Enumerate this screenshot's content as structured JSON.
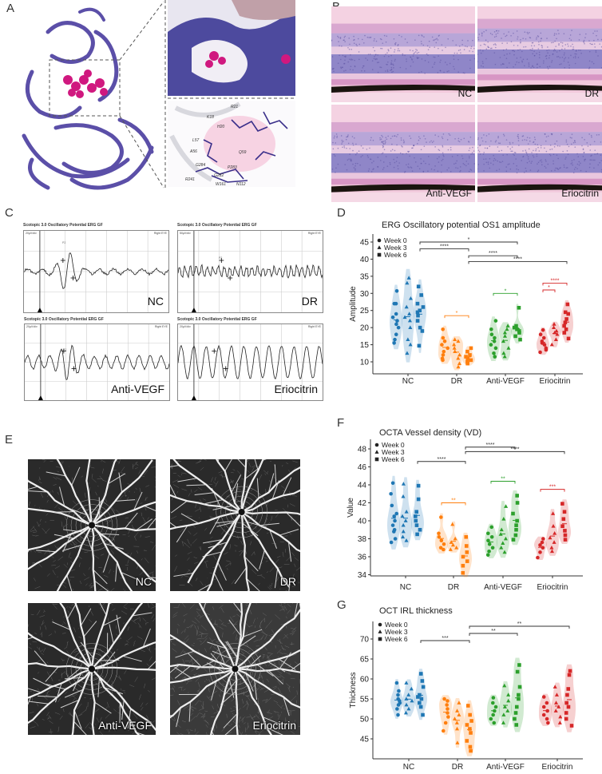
{
  "panel_letters": {
    "a": "A",
    "b": "B",
    "c": "C",
    "d": "D",
    "e": "E",
    "f": "F",
    "g": "G"
  },
  "panel_a": {
    "residues": [
      "K18",
      "R21",
      "H20",
      "L57",
      "A56",
      "Q59",
      "G284",
      "P283",
      "G282",
      "R241",
      "W161",
      "N112"
    ]
  },
  "panel_b": {
    "labels": [
      "NC",
      "DR",
      "Anti-VEGF",
      "Eriocitrin"
    ]
  },
  "panel_c": {
    "header": "Scotopic 3.0 Oscillatory Potential ERG GF",
    "scale_labels": [
      "20µV/div",
      "50µV/div",
      "20µV/div",
      "20µV/div"
    ],
    "eye_label": "Right EYE",
    "peak_label": "P2",
    "labels": [
      "NC",
      "DR",
      "Anti-VEGF",
      "Eriocitrin"
    ]
  },
  "panel_e": {
    "labels": [
      "NC",
      "DR",
      "Anti-VEGF",
      "Eriocitrin"
    ]
  },
  "colors": {
    "NC": "#1f77b4",
    "DR": "#ff7f0e",
    "Anti-VEGF": "#2ca02c",
    "Eriocitrin": "#d62728",
    "bracket": "#333333"
  },
  "chart_data": [
    {
      "type": "violin",
      "title": "ERG Oscillatory potential OS1 amplitude",
      "ylabel": "Amplitude",
      "xlabel": "",
      "categories": [
        "NC",
        "DR",
        "Anti-VEGF",
        "Eriocitrin"
      ],
      "legend": [
        "Week 0",
        "Week 3",
        "Week 6"
      ],
      "legend_markers": [
        "circle",
        "triangle",
        "square"
      ],
      "legend_position": "top-left",
      "y_ticks": [
        10,
        15,
        20,
        25,
        30,
        35,
        40,
        45
      ],
      "ylim": [
        6.5,
        47
      ],
      "series": [
        {
          "name": "Week 0",
          "values": [
            [
              15.5,
              16.5,
              18,
              20,
              21,
              22,
              23,
              24,
              27,
              27,
              30.7
            ],
            [
              10.5,
              11,
              12,
              13,
              14,
              15,
              16,
              17,
              19.5
            ],
            [
              11.5,
              12.5,
              14,
              15,
              16,
              17,
              18,
              19.5,
              22
            ],
            [
              12.8,
              13.5,
              14,
              15,
              15.5,
              16,
              17,
              18,
              19.3
            ]
          ]
        },
        {
          "name": "Week 3",
          "values": [
            [
              12.5,
              15,
              16.5,
              20,
              22,
              23,
              24,
              26,
              28.5,
              33,
              34.5
            ],
            [
              8.5,
              9.5,
              11,
              12,
              13,
              14,
              15,
              16,
              16.5
            ],
            [
              11.5,
              12.5,
              14,
              16,
              17.5,
              18.5,
              19.5,
              20.5
            ],
            [
              15,
              16.5,
              18,
              18.5,
              19,
              20,
              21
            ]
          ]
        },
        {
          "name": "Week 6",
          "values": [
            [
              14.7,
              19,
              20,
              22,
              23.5,
              24.5,
              25,
              26,
              27,
              29.5,
              32
            ],
            [
              9.5,
              10,
              10.5,
              11,
              11.5,
              12,
              13,
              14
            ],
            [
              16.5,
              17.5,
              18.5,
              19,
              19.5,
              20,
              20.5,
              25.8
            ],
            [
              16.8,
              18.5,
              19.5,
              20.5,
              21.5,
              22.5,
              24,
              24.5,
              26.8
            ]
          ]
        }
      ],
      "significance": [
        {
          "from": [
            "NC",
            2
          ],
          "to": [
            "Anti-VEGF",
            2
          ],
          "y": 45,
          "label": "*",
          "color": "#333333"
        },
        {
          "from": [
            "NC",
            2
          ],
          "to": [
            "DR",
            2
          ],
          "y": 43,
          "label": "****",
          "color": "#333333"
        },
        {
          "from": [
            "DR",
            2
          ],
          "to": [
            "Anti-VEGF",
            2
          ],
          "y": 41,
          "label": "****",
          "color": "#333333"
        },
        {
          "from": [
            "DR",
            2
          ],
          "to": [
            "Eriocitrin",
            2
          ],
          "y": 39.3,
          "label": "****",
          "color": "#333333"
        },
        {
          "from": [
            "DR",
            0
          ],
          "to": [
            "DR",
            2
          ],
          "y": 23.5,
          "label": "*",
          "color": "#ff7f0e"
        },
        {
          "from": [
            "Anti-VEGF",
            0
          ],
          "to": [
            "Anti-VEGF",
            2
          ],
          "y": 30,
          "label": "*",
          "color": "#2ca02c"
        },
        {
          "from": [
            "Eriocitrin",
            0
          ],
          "to": [
            "Eriocitrin",
            1
          ],
          "y": 31,
          "label": "*",
          "color": "#d62728"
        },
        {
          "from": [
            "Eriocitrin",
            0
          ],
          "to": [
            "Eriocitrin",
            2
          ],
          "y": 33,
          "label": "****",
          "color": "#d62728"
        }
      ]
    },
    {
      "type": "violin",
      "title": "OCTA Vessel density (VD)",
      "ylabel": "Value",
      "xlabel": "",
      "categories": [
        "NC",
        "DR",
        "Anti-VEGF",
        "Eriocitrin"
      ],
      "legend": [
        "Week 0",
        "Week 3",
        "Week 6"
      ],
      "legend_markers": [
        "circle",
        "triangle",
        "square"
      ],
      "legend_position": "top-left",
      "y_ticks": [
        34,
        36,
        38,
        40,
        42,
        44,
        46,
        48
      ],
      "ylim": [
        33.9,
        49.1
      ],
      "series": [
        {
          "name": "Week 0",
          "values": [
            [
              37.6,
              38,
              38.8,
              39,
              39.5,
              40,
              40.5,
              40.8,
              41.7,
              43,
              44.2
            ],
            [
              36.8,
              37,
              37.4,
              37.8,
              38.2,
              38.6,
              40.4
            ],
            [
              36.2,
              36.6,
              37,
              37.4,
              37.8,
              38.2,
              38.6,
              39.3
            ],
            [
              35.9,
              36.5,
              37,
              37.3,
              37.6,
              38
            ]
          ]
        },
        {
          "name": "Week 3",
          "values": [
            [
              37.8,
              38.2,
              38.8,
              39.5,
              40,
              40.5,
              41,
              42.7,
              44.1
            ],
            [
              36.8,
              37,
              37.3,
              37.6,
              38,
              39.6
            ],
            [
              36.5,
              37,
              37.5,
              38,
              38.5,
              39,
              40.2,
              41.6
            ],
            [
              36.6,
              37,
              37.6,
              38.1,
              38.6,
              39.4,
              40.8
            ]
          ]
        },
        {
          "name": "Week 6",
          "values": [
            [
              38.5,
              39,
              39.5,
              40,
              40.5,
              41,
              42.4,
              43.9
            ],
            [
              34.2,
              35,
              35.5,
              36,
              36.5,
              37.2,
              38.2
            ],
            [
              37.9,
              38.4,
              39,
              39.5,
              40,
              40.8,
              42,
              42.8
            ],
            [
              37.9,
              38.4,
              38.9,
              39.4,
              40.2,
              41,
              41.9
            ]
          ]
        }
      ],
      "significance": [
        {
          "from": [
            "NC",
            2
          ],
          "to": [
            "DR",
            2
          ],
          "y": 46.6,
          "label": "****",
          "color": "#333333"
        },
        {
          "from": [
            "DR",
            2
          ],
          "to": [
            "Anti-VEGF",
            2
          ],
          "y": 48.2,
          "label": "****",
          "color": "#333333"
        },
        {
          "from": [
            "DR",
            2
          ],
          "to": [
            "Eriocitrin",
            2
          ],
          "y": 47.7,
          "label": "****",
          "color": "#333333"
        },
        {
          "from": [
            "DR",
            0
          ],
          "to": [
            "DR",
            2
          ],
          "y": 42,
          "label": "**",
          "color": "#ff7f0e"
        },
        {
          "from": [
            "Anti-VEGF",
            0
          ],
          "to": [
            "Anti-VEGF",
            2
          ],
          "y": 44.4,
          "label": "**",
          "color": "#2ca02c"
        },
        {
          "from": [
            "Eriocitrin",
            0
          ],
          "to": [
            "Eriocitrin",
            2
          ],
          "y": 43.5,
          "label": "***",
          "color": "#d62728"
        }
      ]
    },
    {
      "type": "violin",
      "title": "OCT IRL thickness",
      "ylabel": "Thickness",
      "xlabel": "",
      "categories": [
        "NC",
        "DR",
        "Anti-VEGF",
        "Eriocitrin"
      ],
      "legend": [
        "Week 0",
        "Week 3",
        "Week 6"
      ],
      "legend_markers": [
        "circle",
        "triangle",
        "square"
      ],
      "legend_position": "top-left",
      "y_ticks": [
        45,
        50,
        55,
        60,
        65,
        70
      ],
      "ylim": [
        40,
        74.4
      ],
      "series": [
        {
          "name": "Week 0",
          "values": [
            [
              51,
              52.5,
              53.5,
              54,
              54.5,
              55,
              56,
              57,
              59
            ],
            [
              47,
              49,
              50.5,
              51.5,
              52.5,
              53.5,
              54.5,
              55
            ],
            [
              49,
              50,
              51,
              52,
              53,
              54,
              55.3
            ],
            [
              49,
              50,
              51,
              52,
              53,
              54,
              55.5
            ]
          ]
        },
        {
          "name": "Week 3",
          "values": [
            [
              51.5,
              52.5,
              53.5,
              54.5,
              55,
              56,
              57.5,
              59
            ],
            [
              44,
              47.5,
              49,
              50,
              51,
              52,
              54
            ],
            [
              49,
              51,
              52,
              53,
              54.5,
              56,
              58.3
            ],
            [
              49,
              50.5,
              52,
              53,
              54,
              56,
              58
            ]
          ]
        },
        {
          "name": "Week 6",
          "values": [
            [
              51,
              53,
              54,
              55,
              55.5,
              56,
              58,
              59.5,
              61.3
            ],
            [
              42,
              43,
              44.5,
              46.5,
              47.5,
              48.5,
              49.5,
              51,
              53.3
            ],
            [
              48.5,
              50,
              51.5,
              53,
              55,
              56,
              58,
              61.8,
              63.5
            ],
            [
              48.3,
              50,
              51.5,
              53,
              54,
              56,
              57.5,
              61,
              62
            ]
          ]
        }
      ],
      "significance": [
        {
          "from": [
            "NC",
            2
          ],
          "to": [
            "DR",
            2
          ],
          "y": 69.6,
          "label": "***",
          "color": "#333333"
        },
        {
          "from": [
            "DR",
            2
          ],
          "to": [
            "Anti-VEGF",
            2
          ],
          "y": 71.4,
          "label": "**",
          "color": "#333333"
        },
        {
          "from": [
            "DR",
            2
          ],
          "to": [
            "Eriocitrin",
            2
          ],
          "y": 73.2,
          "label": "**",
          "color": "#333333"
        }
      ]
    }
  ]
}
